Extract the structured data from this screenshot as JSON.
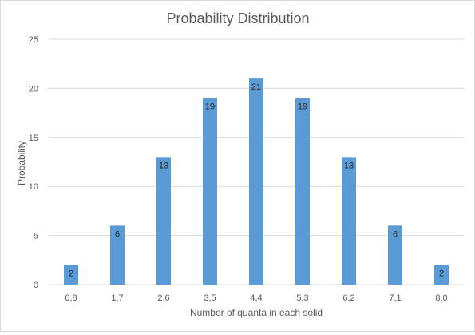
{
  "chart_data": {
    "type": "bar",
    "title": "Probability Distribution",
    "xlabel": "Number  of quanta in each solid",
    "ylabel": "Probability",
    "categories": [
      "0,8",
      "1,7",
      "2,6",
      "3,5",
      "4,4",
      "5,3",
      "6,2",
      "7,1",
      "8,0"
    ],
    "values": [
      2,
      6,
      13,
      19,
      21,
      19,
      13,
      6,
      2
    ],
    "ylim": [
      0,
      25
    ],
    "yticks": [
      0,
      5,
      10,
      15,
      20,
      25
    ],
    "grid": true,
    "legend": "none",
    "data_labels": "inside-end",
    "colors": {
      "bar": "#5b9bd5",
      "grid": "#d9d9d9",
      "text": "#595959",
      "title": "#595959",
      "label": "#262626"
    }
  }
}
